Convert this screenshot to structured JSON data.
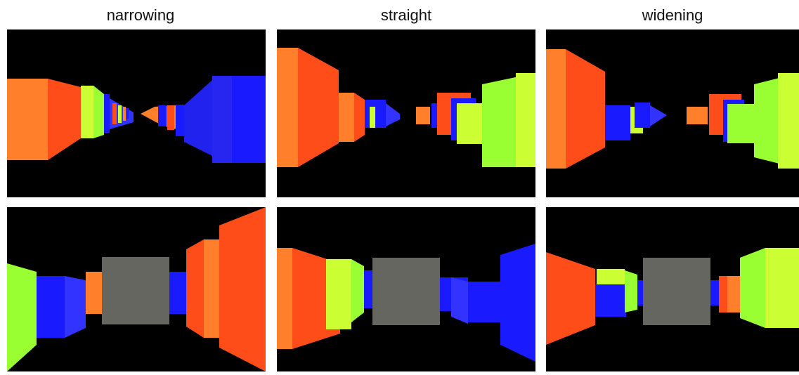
{
  "titles": [
    "narrowing",
    "straight",
    "widening"
  ]
}
